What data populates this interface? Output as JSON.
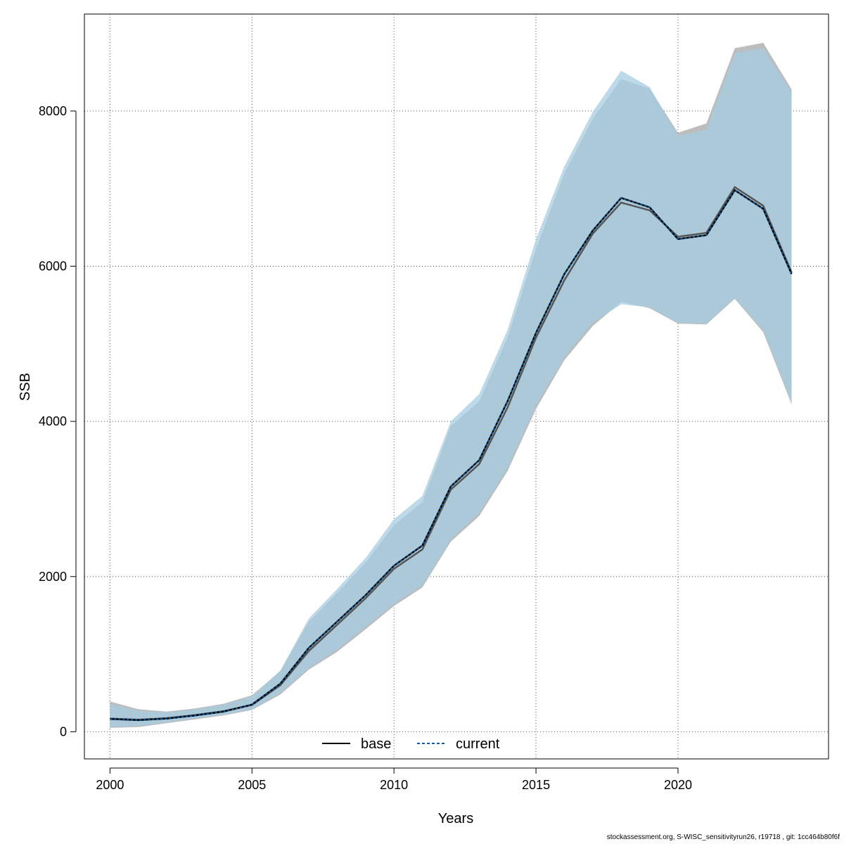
{
  "chart_data": {
    "type": "line",
    "xlabel": "Years",
    "ylabel": "SSB",
    "xlim": [
      1999.1,
      2025.3
    ],
    "ylim": [
      -350,
      9250
    ],
    "xticks": [
      2000,
      2005,
      2010,
      2015,
      2020
    ],
    "yticks": [
      0,
      2000,
      4000,
      6000,
      8000
    ],
    "grid": true,
    "legend_position": "bottom-center",
    "x": [
      2000,
      2001,
      2002,
      2003,
      2004,
      2005,
      2006,
      2007,
      2008,
      2009,
      2010,
      2011,
      2012,
      2013,
      2014,
      2015,
      2016,
      2017,
      2018,
      2019,
      2020,
      2021,
      2022,
      2023,
      2024
    ],
    "series": [
      {
        "name": "base",
        "color": "#000000",
        "line_style": "solid",
        "band_color": "#bdbdbd",
        "values": [
          170,
          155,
          175,
          215,
          265,
          345,
          600,
          1040,
          1380,
          1720,
          2100,
          2350,
          3120,
          3450,
          4180,
          5080,
          5820,
          6420,
          6820,
          6720,
          6380,
          6430,
          7020,
          6780,
          5920
        ],
        "lower": [
          50,
          60,
          110,
          160,
          210,
          280,
          480,
          800,
          1030,
          1320,
          1620,
          1860,
          2450,
          2780,
          3360,
          4160,
          4790,
          5230,
          5540,
          5460,
          5260,
          5250,
          5580,
          5150,
          4220
        ],
        "upper": [
          390,
          290,
          260,
          300,
          360,
          470,
          780,
          1420,
          1790,
          2180,
          2660,
          2960,
          3940,
          4260,
          5080,
          6220,
          7200,
          7900,
          8410,
          8290,
          7720,
          7840,
          8810,
          8880,
          8280
        ]
      },
      {
        "name": "current",
        "color": "#0a5a9c",
        "line_style": "dashed",
        "band_color": "#a6cee3",
        "values": [
          165,
          150,
          170,
          210,
          260,
          350,
          620,
          1080,
          1420,
          1760,
          2140,
          2400,
          3160,
          3500,
          4260,
          5140,
          5900,
          6460,
          6880,
          6760,
          6350,
          6400,
          6980,
          6740,
          5900
        ],
        "lower": [
          60,
          70,
          120,
          170,
          220,
          290,
          500,
          820,
          1060,
          1350,
          1650,
          1890,
          2480,
          2820,
          3400,
          4210,
          4830,
          5270,
          5510,
          5470,
          5270,
          5260,
          5590,
          5170,
          4240
        ],
        "upper": [
          360,
          270,
          250,
          290,
          350,
          460,
          790,
          1460,
          1840,
          2240,
          2740,
          3040,
          4000,
          4350,
          5180,
          6350,
          7290,
          7990,
          8520,
          8310,
          7680,
          7760,
          8750,
          8810,
          8240
        ]
      }
    ]
  },
  "footnote": "stockassessment.org, S-WISC_sensitivityrun26, r19718 , git: 1cc464b80f6f"
}
